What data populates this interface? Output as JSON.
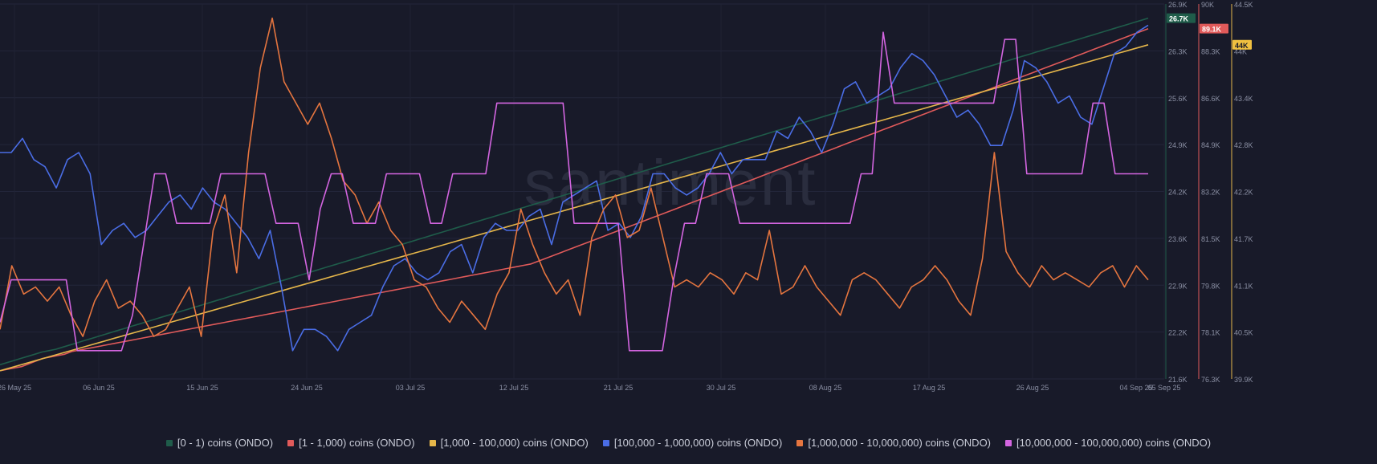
{
  "watermark": "santiment",
  "chart_data": {
    "type": "line",
    "grid": true,
    "x_ticks": [
      "26 May 25",
      "06 Jun 25",
      "15 Jun 25",
      "24 Jun 25",
      "03 Jul 25",
      "12 Jul 25",
      "21 Jul 25",
      "30 Jul 25",
      "08 Aug 25",
      "17 Aug 25",
      "26 Aug 25",
      "04 Sep 25",
      "05 Sep 25"
    ],
    "axes": [
      {
        "id": "a",
        "color": "#1f5c4a",
        "ticks": [
          "26.9K",
          "26.3K",
          "25.6K",
          "24.9K",
          "24.2K",
          "23.6K",
          "22.9K",
          "22.2K",
          "21.6K"
        ],
        "ylim": [
          21600,
          26900
        ]
      },
      {
        "id": "b",
        "color": "#e05a5a",
        "ticks": [
          "90K",
          "88.3K",
          "86.6K",
          "84.9K",
          "83.2K",
          "81.5K",
          "79.8K",
          "78.1K",
          "76.3K"
        ],
        "ylim": [
          76300,
          90000
        ]
      },
      {
        "id": "c",
        "color": "#e5b64a",
        "ticks": [
          "44.5K",
          "44K",
          "43.4K",
          "42.8K",
          "42.2K",
          "41.7K",
          "41.1K",
          "40.5K",
          "39.9K"
        ],
        "ylim": [
          39900,
          44500
        ]
      }
    ],
    "badges": [
      {
        "axis": "a",
        "text": "26.7K",
        "value": 26700,
        "bg": "#1f5c4a",
        "fg": "#ffffff"
      },
      {
        "axis": "b",
        "text": "89.1K",
        "value": 89100,
        "bg": "#e05a5a",
        "fg": "#ffffff"
      },
      {
        "axis": "c",
        "text": "44K",
        "value": 44000,
        "bg": "#f0c040",
        "fg": "#181a29"
      }
    ],
    "series": [
      {
        "name": "[0 - 1) coins (ONDO)",
        "color": "#1f5c4a",
        "axis": "a",
        "y": [
          21800,
          21830,
          21860,
          21890,
          21920,
          21950,
          21980,
          22000,
          22020,
          22050,
          22080,
          22110,
          22140,
          22170,
          22200,
          22230,
          22260,
          22290,
          22320,
          22350,
          22380,
          22410,
          22440,
          22470,
          22500,
          22530,
          22560,
          22590,
          22620,
          22650,
          22680,
          22710,
          22740,
          22770,
          22800,
          22830,
          22860,
          22890,
          22920,
          22950,
          22980,
          23010,
          23040,
          23070,
          23100,
          23130,
          23160,
          23190,
          23220,
          23250,
          23280,
          23310,
          23340,
          23370,
          23400,
          23430,
          23460,
          23490,
          23520,
          23550,
          23580,
          23610,
          23640,
          23670,
          23700,
          23730,
          23760,
          23790,
          23820,
          23850,
          23880,
          23910,
          23940,
          23970,
          24000,
          24030,
          24060,
          24090,
          24120,
          24150,
          24180,
          24210,
          24240,
          24270,
          24300,
          24330,
          24360,
          24390,
          24420,
          24450,
          24480,
          24510,
          24540,
          24570,
          24600,
          24630,
          24660,
          24690,
          24720,
          24750,
          24780,
          24810,
          24840,
          24870,
          24900,
          24930,
          24960,
          24990,
          25020,
          25050,
          25080,
          25110,
          25140,
          25170,
          25200,
          25230,
          25260,
          25290,
          25320,
          25350,
          25380,
          25410,
          25440,
          25470,
          25500,
          25530,
          25560,
          25590,
          25620,
          25650,
          25680,
          25710,
          25740,
          25770,
          25800,
          25830,
          25860,
          25890,
          25920,
          25950,
          25980,
          26010,
          26040,
          26070,
          26100,
          26130,
          26160,
          26190,
          26220,
          26250,
          26280,
          26310,
          26340,
          26370,
          26400,
          26430,
          26460,
          26490,
          26520,
          26550,
          26580,
          26610,
          26640,
          26670,
          26700
        ]
      },
      {
        "name": "[1 - 1,000) coins (ONDO)",
        "color": "#e05a5a",
        "axis": "b",
        "y": [
          76600,
          76650,
          76700,
          76750,
          76850,
          76950,
          77050,
          77100,
          77150,
          77200,
          77300,
          77350,
          77400,
          77450,
          77500,
          77550,
          77600,
          77650,
          77700,
          77750,
          77800,
          77850,
          77900,
          77950,
          78000,
          78050,
          78100,
          78150,
          78200,
          78250,
          78300,
          78350,
          78400,
          78450,
          78500,
          78550,
          78600,
          78650,
          78700,
          78750,
          78800,
          78850,
          78900,
          78950,
          79000,
          79050,
          79100,
          79150,
          79200,
          79250,
          79300,
          79350,
          79400,
          79450,
          79500,
          79550,
          79600,
          79650,
          79700,
          79750,
          79800,
          79850,
          79900,
          79950,
          80000,
          80050,
          80100,
          80150,
          80200,
          80250,
          80300,
          80350,
          80400,
          80450,
          80500,
          80600,
          80700,
          80800,
          80900,
          81000,
          81100,
          81200,
          81300,
          81400,
          81500,
          81600,
          81700,
          81800,
          81900,
          82000,
          82100,
          82200,
          82300,
          82400,
          82500,
          82600,
          82700,
          82800,
          82900,
          83000,
          83100,
          83200,
          83300,
          83400,
          83500,
          83600,
          83700,
          83800,
          83900,
          84000,
          84100,
          84200,
          84300,
          84400,
          84500,
          84600,
          84700,
          84800,
          84900,
          85000,
          85100,
          85200,
          85300,
          85400,
          85500,
          85600,
          85700,
          85800,
          85900,
          86000,
          86100,
          86200,
          86300,
          86400,
          86500,
          86600,
          86700,
          86800,
          86900,
          87000,
          87100,
          87200,
          87300,
          87400,
          87500,
          87600,
          87700,
          87800,
          87900,
          88000,
          88100,
          88200,
          88300,
          88400,
          88500,
          88600,
          88700,
          88800,
          88900,
          89000,
          89100
        ]
      },
      {
        "name": "[1,000 - 100,000) coins (ONDO)",
        "color": "#e5b64a",
        "axis": "c",
        "y": [
          40000,
          40100,
          40200,
          40300,
          40400,
          40500,
          40600,
          40700,
          40800,
          40900,
          41000,
          41100,
          41200,
          41300,
          41400,
          41500,
          41600,
          41700,
          41800,
          41900,
          42000,
          42100,
          42200,
          42300,
          42400,
          42500,
          42600,
          42700,
          42800,
          42900,
          43000,
          43100,
          43200,
          43300,
          43400,
          43500,
          43600,
          43700,
          43800,
          43900,
          44000
        ]
      },
      {
        "name": "[100,000  - 1,000,000) coins (ONDO)",
        "color": "#4a6de5",
        "axis": "a",
        "y": [
          24800,
          24800,
          25000,
          24700,
          24600,
          24300,
          24700,
          24800,
          24500,
          23500,
          23700,
          23800,
          23600,
          23700,
          23900,
          24100,
          24200,
          24000,
          24300,
          24100,
          24000,
          23800,
          23600,
          23300,
          23700,
          22900,
          22000,
          22300,
          22300,
          22200,
          22000,
          22300,
          22400,
          22500,
          22900,
          23200,
          23300,
          23100,
          23000,
          23100,
          23400,
          23500,
          23100,
          23600,
          23800,
          23700,
          23700,
          23900,
          24000,
          23500,
          24100,
          24200,
          24300,
          24400,
          23700,
          23800,
          23600,
          23900,
          24500,
          24500,
          24300,
          24200,
          24300,
          24500,
          24800,
          24500,
          24700,
          24700,
          24700,
          25100,
          25000,
          25300,
          25100,
          24800,
          25200,
          25700,
          25800,
          25500,
          25600,
          25700,
          26000,
          26200,
          26100,
          25900,
          25600,
          25300,
          25400,
          25200,
          24900,
          24900,
          25400,
          26100,
          26000,
          25800,
          25500,
          25600,
          25300,
          25200,
          25700,
          26200,
          26300,
          26500,
          26600
        ]
      },
      {
        "name": "[1,000,000 - 10,000,000) coins (ONDO)",
        "color": "#e5753f",
        "axis": "a",
        "y": [
          22300,
          23200,
          22800,
          22900,
          22700,
          22900,
          22500,
          22200,
          22700,
          23000,
          22600,
          22700,
          22500,
          22200,
          22300,
          22600,
          22900,
          22200,
          23700,
          24200,
          23100,
          24800,
          26000,
          26700,
          25800,
          25500,
          25200,
          25500,
          25000,
          24400,
          24200,
          23800,
          24100,
          23700,
          23500,
          23000,
          22900,
          22600,
          22400,
          22700,
          22500,
          22300,
          22800,
          23100,
          24000,
          23500,
          23100,
          22800,
          23000,
          22500,
          23600,
          24000,
          24200,
          23600,
          23700,
          24300,
          23600,
          22900,
          23000,
          22900,
          23100,
          23000,
          22800,
          23100,
          23000,
          23700,
          22800,
          22900,
          23200,
          22900,
          22700,
          22500,
          23000,
          23100,
          23000,
          22800,
          22600,
          22900,
          23000,
          23200,
          23000,
          22700,
          22500,
          23300,
          24800,
          23400,
          23100,
          22900,
          23200,
          23000,
          23100,
          23000,
          22900,
          23100,
          23200,
          22900,
          23200,
          23000
        ]
      },
      {
        "name": "[10,000,000 - 100,000,000) coins (ONDO)",
        "color": "#d365e0",
        "axis": "a",
        "y": [
          22400,
          23000,
          23000,
          23000,
          23000,
          23000,
          23000,
          22000,
          22000,
          22000,
          22000,
          22000,
          22500,
          23500,
          24500,
          24500,
          23800,
          23800,
          23800,
          23800,
          24500,
          24500,
          24500,
          24500,
          24500,
          23800,
          23800,
          23800,
          23000,
          24000,
          24500,
          24500,
          23800,
          23800,
          23800,
          24500,
          24500,
          24500,
          24500,
          23800,
          23800,
          24500,
          24500,
          24500,
          24500,
          25500,
          25500,
          25500,
          25500,
          25500,
          25500,
          25500,
          23800,
          23800,
          23800,
          23800,
          23800,
          22000,
          22000,
          22000,
          22000,
          23000,
          23800,
          23800,
          24500,
          24500,
          24500,
          23800,
          23800,
          23800,
          23800,
          23800,
          23800,
          23800,
          23800,
          23800,
          23800,
          23800,
          24500,
          24500,
          26500,
          25500,
          25500,
          25500,
          25500,
          25500,
          25500,
          25500,
          25500,
          25500,
          25500,
          26400,
          26400,
          24500,
          24500,
          24500,
          24500,
          24500,
          24500,
          25500,
          25500,
          24500,
          24500,
          24500,
          24500
        ]
      }
    ]
  }
}
